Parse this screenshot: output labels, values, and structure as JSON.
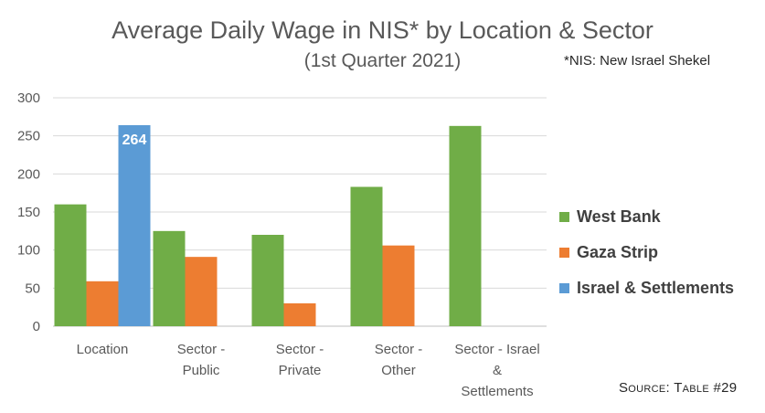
{
  "chart_data": {
    "type": "bar",
    "title": "Average Daily Wage in NIS* by Location & Sector",
    "subtitle": "(1st Quarter 2021)",
    "note": "*NIS: New Israel Shekel",
    "source": "Source: Table #29",
    "categories": [
      [
        "Location"
      ],
      [
        "Sector -",
        "Public"
      ],
      [
        "Sector -",
        "Private"
      ],
      [
        "Sector -",
        "Other"
      ],
      [
        "Sector - Israel",
        "&",
        "Settlements"
      ]
    ],
    "series": [
      {
        "name": "West Bank",
        "color": "#70ad47",
        "values": [
          160,
          125,
          120,
          183,
          263
        ]
      },
      {
        "name": "Gaza Strip",
        "color": "#ed7d31",
        "values": [
          59,
          91,
          30,
          106,
          null
        ]
      },
      {
        "name": "Israel & Settlements",
        "color": "#5b9bd5",
        "values": [
          264,
          null,
          null,
          null,
          null
        ]
      }
    ],
    "data_labels": [
      {
        "series": 2,
        "category": 0,
        "text": "264"
      }
    ],
    "yticks": [
      "0",
      "50",
      "100",
      "150",
      "200",
      "250",
      "300"
    ],
    "ylim": [
      0,
      300
    ],
    "grid": true,
    "legend_position": "right"
  }
}
